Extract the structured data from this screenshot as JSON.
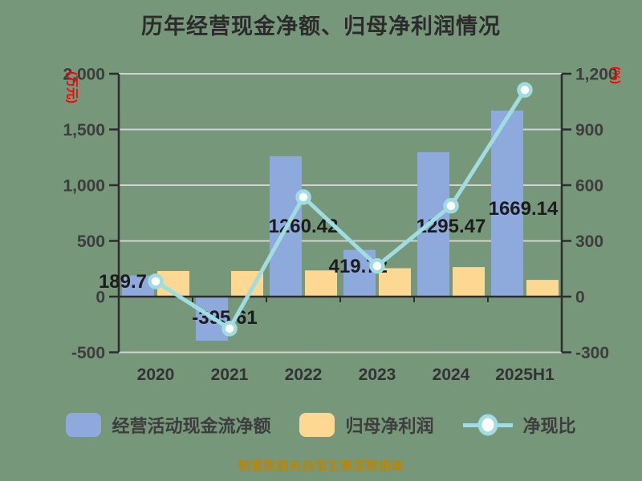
{
  "chart_data": {
    "type": "combo",
    "title": "历年经营现金净额、归母净利润情况",
    "categories": [
      "2020",
      "2021",
      "2022",
      "2023",
      "2024",
      "2025H1"
    ],
    "series": [
      {
        "name": "经营活动现金流净额",
        "kind": "bar",
        "axis": "left",
        "color": "#8ea9db",
        "values": [
          189.7,
          -395.61,
          1260.42,
          419.72,
          1295.47,
          1669.14
        ],
        "labels": [
          "189.7",
          "-395.61",
          "1260.42",
          "419.72",
          "1295.47",
          "1669.14"
        ]
      },
      {
        "name": "归母净利润",
        "kind": "bar",
        "axis": "left",
        "color": "#fcd893",
        "values": [
          230,
          230,
          235,
          255,
          265,
          150
        ],
        "values_estimated": true
      },
      {
        "name": "净现比",
        "kind": "line",
        "axis": "right",
        "color": "#9fdde0",
        "values": [
          82,
          -172,
          536,
          165,
          489,
          1113
        ],
        "values_estimated": true
      }
    ],
    "left_axis": {
      "unit": "(万元)",
      "min": -500,
      "max": 2000,
      "ticks": [
        "2,000",
        "1,500",
        "1,000",
        "500",
        "0",
        "-500"
      ],
      "tick_values": [
        2000,
        1500,
        1000,
        500,
        0,
        -500
      ]
    },
    "right_axis": {
      "unit": "(%)",
      "min": -300,
      "max": 1200,
      "ticks": [
        "1,200",
        "900",
        "600",
        "300",
        "0",
        "-300"
      ],
      "tick_values": [
        1200,
        900,
        600,
        300,
        0,
        -300
      ]
    },
    "grid": true,
    "legend_position": "bottom"
  },
  "footer": {
    "text": "制图数据来自恒生聚源数据库"
  },
  "colors": {
    "background": "#77977a",
    "title": "#2b2b2b",
    "bar_cash": "#8ea9db",
    "bar_profit": "#fcd893",
    "line_ratio": "#9fdde0",
    "marker_fill": "#ffffff",
    "axis": "#2d2d2d",
    "grid": "#d2d2d2",
    "tick_label": "#3d3d3d",
    "value_label": "#1c1c1c",
    "unit_label": "#ff0000",
    "footer": "#b8860b"
  }
}
